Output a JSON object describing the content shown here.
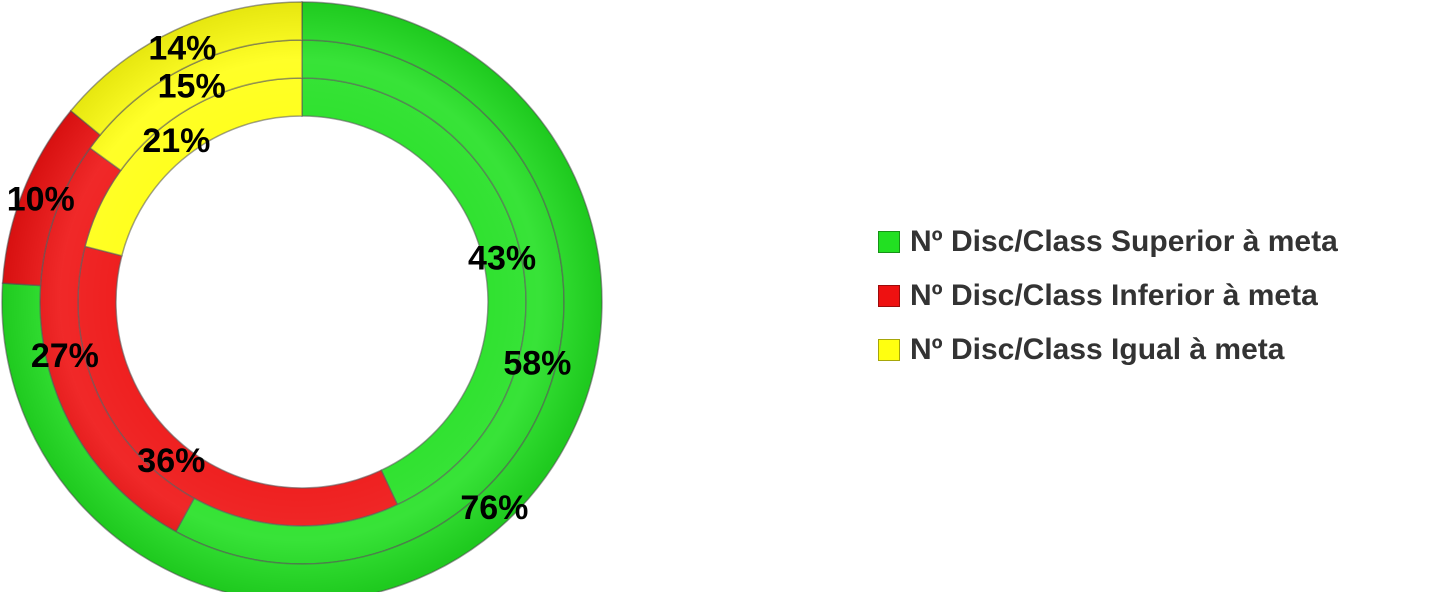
{
  "chart_data": {
    "type": "doughnut",
    "start_angle_deg": 0,
    "direction": "clockwise",
    "categories": [
      "Nº Disc/Class Superior à meta",
      "Nº Disc/Class Inferior à meta",
      "Nº Disc/Class Igual à meta"
    ],
    "rings": [
      {
        "values": [
          43,
          36,
          21
        ],
        "labels": [
          "43%",
          "36%",
          "21%"
        ]
      },
      {
        "values": [
          58,
          27,
          15
        ],
        "labels": [
          "58%",
          "27%",
          "15%"
        ]
      },
      {
        "values": [
          76,
          10,
          14
        ],
        "labels": [
          "76%",
          "10%",
          "14%"
        ]
      }
    ],
    "colors": [
      "#22e022",
      "#ee1111",
      "#ffff10"
    ],
    "legend": {
      "position": "right",
      "items": [
        {
          "label": "Nº Disc/Class Superior à meta",
          "color": "#22e022"
        },
        {
          "label": "Nº Disc/Class Inferior à meta",
          "color": "#ee1111"
        },
        {
          "label": "Nº Disc/Class Igual à meta",
          "color": "#ffff10"
        }
      ]
    }
  }
}
